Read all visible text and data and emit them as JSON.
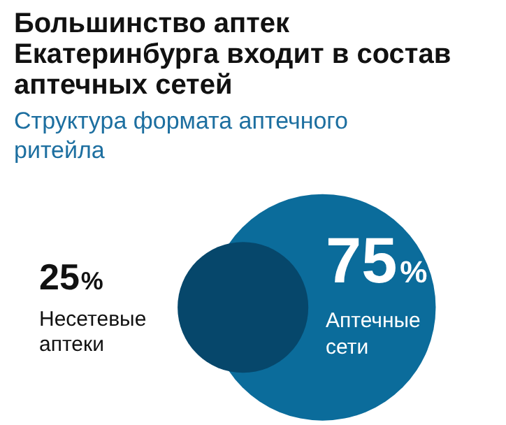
{
  "chart_data": {
    "type": "other",
    "title": "Большинство аптек Екатеринбурга входит в состав аптечных сетей",
    "subtitle": "Структура формата аптечного ритейла",
    "categories": [
      "Несетевые аптеки",
      "Аптечные сети"
    ],
    "values": [
      25,
      75
    ],
    "value_labels": [
      "25%",
      "75%"
    ],
    "colors": [
      "#06476b",
      "#0b6c9b"
    ]
  }
}
